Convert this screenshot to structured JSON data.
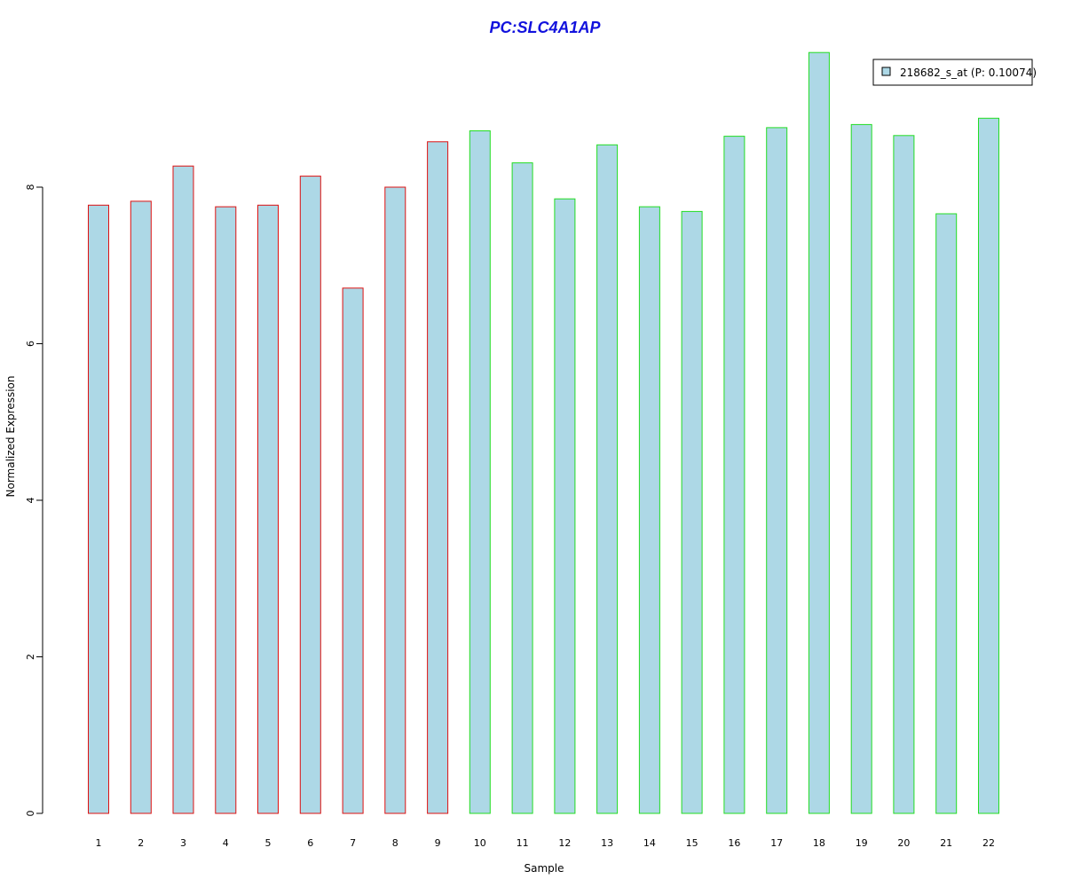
{
  "colors": {
    "title": "#1111dd",
    "bar_fill": "#add8e6",
    "group1_border": "#dd1111",
    "group2_border": "#22dd22",
    "axis": "#000000"
  },
  "chart_data": {
    "type": "bar",
    "title": "PC:SLC4A1AP",
    "xlabel": "Sample",
    "ylabel": "Normalized Expression",
    "ylim": [
      0,
      9.8
    ],
    "yticks": [
      0,
      2,
      4,
      6,
      8
    ],
    "grid": false,
    "legend_position": "top-right",
    "categories": [
      "1",
      "2",
      "3",
      "4",
      "5",
      "6",
      "7",
      "8",
      "9",
      "10",
      "11",
      "12",
      "13",
      "14",
      "15",
      "16",
      "17",
      "18",
      "19",
      "20",
      "21",
      "22"
    ],
    "series": [
      {
        "name": "218682_s_at (P: 0.10074)",
        "values": [
          7.77,
          7.82,
          8.27,
          7.75,
          7.77,
          8.14,
          6.71,
          8.0,
          8.58,
          8.72,
          8.31,
          7.85,
          8.54,
          7.75,
          7.69,
          8.65,
          8.76,
          9.72,
          8.8,
          8.66,
          7.66,
          8.88
        ]
      }
    ],
    "group_border": [
      "group1",
      "group1",
      "group1",
      "group1",
      "group1",
      "group1",
      "group1",
      "group1",
      "group1",
      "group2",
      "group2",
      "group2",
      "group2",
      "group2",
      "group2",
      "group2",
      "group2",
      "group2",
      "group2",
      "group2",
      "group2",
      "group2"
    ]
  }
}
